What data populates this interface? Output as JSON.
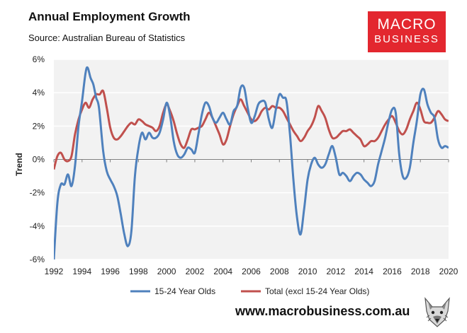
{
  "header": {
    "title": "Annual Employment Growth",
    "subtitle": "Source: Australian Bureau of Statistics"
  },
  "logo": {
    "line1": "MACRO",
    "line2": "BUSINESS"
  },
  "footer": {
    "website": "www.macrobusiness.com.au",
    "icon": "wolf-head-icon"
  },
  "colors": {
    "youth": "#4f81bd",
    "total": "#c0504d",
    "plot_bg": "#f2f2f2",
    "grid": "#ffffff",
    "logo": "#e3272f"
  },
  "chart_data": {
    "type": "line",
    "ylabel": "Trend",
    "xlabel": "",
    "xlim": [
      1992,
      2020
    ],
    "ylim": [
      -6,
      6
    ],
    "xticks": [
      1992,
      1994,
      1996,
      1998,
      2000,
      2002,
      2004,
      2006,
      2008,
      2010,
      2012,
      2014,
      2016,
      2018,
      2020
    ],
    "xtick_labels": [
      "1992",
      "1994",
      "1996",
      "1998",
      "2000",
      "2002",
      "2004",
      "2006",
      "2008",
      "2010",
      "2012",
      "2014",
      "2016",
      "2018",
      "2020"
    ],
    "yticks": [
      -6,
      -4,
      -2,
      0,
      2,
      4,
      6
    ],
    "ytick_labels": [
      "-6%",
      "-4%",
      "-2%",
      "0%",
      "2%",
      "4%",
      "6%"
    ],
    "grid": "horizontal",
    "legend_position": "bottom",
    "series": [
      {
        "name": "15-24 Year Olds",
        "color": "#4f81bd",
        "points": [
          [
            1992.0,
            -6.0
          ],
          [
            1992.25,
            -2.6
          ],
          [
            1992.5,
            -1.5
          ],
          [
            1992.75,
            -1.5
          ],
          [
            1993.0,
            -0.9
          ],
          [
            1993.25,
            -1.6
          ],
          [
            1993.5,
            -0.4
          ],
          [
            1993.75,
            2.0
          ],
          [
            1994.0,
            3.5
          ],
          [
            1994.25,
            5.2
          ],
          [
            1994.4,
            5.5
          ],
          [
            1994.6,
            4.9
          ],
          [
            1994.8,
            4.5
          ],
          [
            1995.0,
            3.7
          ],
          [
            1995.2,
            3.1
          ],
          [
            1995.5,
            0.5
          ],
          [
            1995.75,
            -0.7
          ],
          [
            1996.0,
            -1.2
          ],
          [
            1996.25,
            -1.6
          ],
          [
            1996.5,
            -2.2
          ],
          [
            1996.75,
            -3.3
          ],
          [
            1997.0,
            -4.5
          ],
          [
            1997.25,
            -5.2
          ],
          [
            1997.5,
            -4.3
          ],
          [
            1997.75,
            -1.0
          ],
          [
            1998.0,
            0.7
          ],
          [
            1998.25,
            1.6
          ],
          [
            1998.5,
            1.2
          ],
          [
            1998.75,
            1.6
          ],
          [
            1999.0,
            1.3
          ],
          [
            1999.25,
            1.3
          ],
          [
            1999.5,
            1.6
          ],
          [
            1999.75,
            2.4
          ],
          [
            2000.0,
            3.4
          ],
          [
            2000.25,
            2.6
          ],
          [
            2000.5,
            1.1
          ],
          [
            2000.75,
            0.3
          ],
          [
            2001.0,
            0.1
          ],
          [
            2001.25,
            0.3
          ],
          [
            2001.5,
            0.7
          ],
          [
            2001.75,
            0.6
          ],
          [
            2002.0,
            0.4
          ],
          [
            2002.25,
            1.5
          ],
          [
            2002.5,
            2.7
          ],
          [
            2002.75,
            3.4
          ],
          [
            2003.0,
            3.2
          ],
          [
            2003.25,
            2.5
          ],
          [
            2003.5,
            2.2
          ],
          [
            2003.75,
            2.5
          ],
          [
            2004.0,
            2.8
          ],
          [
            2004.25,
            2.4
          ],
          [
            2004.5,
            2.1
          ],
          [
            2004.75,
            2.9
          ],
          [
            2005.0,
            3.2
          ],
          [
            2005.25,
            4.3
          ],
          [
            2005.5,
            4.3
          ],
          [
            2005.75,
            3.1
          ],
          [
            2006.0,
            2.2
          ],
          [
            2006.25,
            2.6
          ],
          [
            2006.5,
            3.3
          ],
          [
            2006.75,
            3.5
          ],
          [
            2007.0,
            3.4
          ],
          [
            2007.25,
            2.4
          ],
          [
            2007.5,
            1.9
          ],
          [
            2007.75,
            3.0
          ],
          [
            2008.0,
            3.9
          ],
          [
            2008.25,
            3.7
          ],
          [
            2008.5,
            3.5
          ],
          [
            2008.75,
            1.5
          ],
          [
            2009.0,
            -1.3
          ],
          [
            2009.25,
            -3.5
          ],
          [
            2009.5,
            -4.5
          ],
          [
            2009.75,
            -3.0
          ],
          [
            2010.0,
            -1.2
          ],
          [
            2010.25,
            -0.3
          ],
          [
            2010.5,
            0.1
          ],
          [
            2010.75,
            -0.3
          ],
          [
            2011.0,
            -0.5
          ],
          [
            2011.25,
            -0.3
          ],
          [
            2011.5,
            0.3
          ],
          [
            2011.75,
            0.8
          ],
          [
            2012.0,
            0.1
          ],
          [
            2012.25,
            -0.9
          ],
          [
            2012.5,
            -0.8
          ],
          [
            2012.75,
            -1.0
          ],
          [
            2013.0,
            -1.3
          ],
          [
            2013.25,
            -1.0
          ],
          [
            2013.5,
            -0.8
          ],
          [
            2013.75,
            -0.9
          ],
          [
            2014.0,
            -1.2
          ],
          [
            2014.25,
            -1.4
          ],
          [
            2014.5,
            -1.6
          ],
          [
            2014.75,
            -1.3
          ],
          [
            2015.0,
            -0.3
          ],
          [
            2015.25,
            0.5
          ],
          [
            2015.5,
            1.3
          ],
          [
            2015.75,
            2.3
          ],
          [
            2016.0,
            3.0
          ],
          [
            2016.25,
            2.8
          ],
          [
            2016.5,
            0.3
          ],
          [
            2016.75,
            -1.0
          ],
          [
            2017.0,
            -1.1
          ],
          [
            2017.25,
            -0.5
          ],
          [
            2017.5,
            1.0
          ],
          [
            2017.75,
            2.3
          ],
          [
            2018.0,
            3.9
          ],
          [
            2018.25,
            4.2
          ],
          [
            2018.5,
            3.3
          ],
          [
            2018.75,
            2.8
          ],
          [
            2019.0,
            2.5
          ],
          [
            2019.25,
            1.2
          ],
          [
            2019.5,
            0.7
          ],
          [
            2019.75,
            0.8
          ],
          [
            2020.0,
            0.7
          ]
        ]
      },
      {
        "name": "Total (excl 15-24 Year Olds)",
        "color": "#c0504d",
        "points": [
          [
            1992.0,
            -0.6
          ],
          [
            1992.25,
            0.2
          ],
          [
            1992.5,
            0.4
          ],
          [
            1992.75,
            0.0
          ],
          [
            1993.0,
            -0.1
          ],
          [
            1993.25,
            0.2
          ],
          [
            1993.5,
            1.5
          ],
          [
            1993.75,
            2.4
          ],
          [
            1994.0,
            3.0
          ],
          [
            1994.25,
            3.4
          ],
          [
            1994.5,
            3.1
          ],
          [
            1994.75,
            3.6
          ],
          [
            1995.0,
            3.9
          ],
          [
            1995.25,
            3.9
          ],
          [
            1995.5,
            4.1
          ],
          [
            1995.75,
            3.1
          ],
          [
            1996.0,
            1.9
          ],
          [
            1996.25,
            1.3
          ],
          [
            1996.5,
            1.2
          ],
          [
            1996.75,
            1.4
          ],
          [
            1997.0,
            1.7
          ],
          [
            1997.25,
            2.0
          ],
          [
            1997.5,
            2.2
          ],
          [
            1997.75,
            2.1
          ],
          [
            1998.0,
            2.4
          ],
          [
            1998.25,
            2.3
          ],
          [
            1998.5,
            2.1
          ],
          [
            1998.75,
            2.0
          ],
          [
            1999.0,
            1.9
          ],
          [
            1999.25,
            1.7
          ],
          [
            1999.5,
            2.0
          ],
          [
            1999.75,
            2.8
          ],
          [
            2000.0,
            3.3
          ],
          [
            2000.25,
            2.9
          ],
          [
            2000.5,
            2.3
          ],
          [
            2000.75,
            1.5
          ],
          [
            2001.0,
            0.9
          ],
          [
            2001.25,
            0.7
          ],
          [
            2001.5,
            1.2
          ],
          [
            2001.75,
            1.8
          ],
          [
            2002.0,
            1.8
          ],
          [
            2002.25,
            1.9
          ],
          [
            2002.5,
            2.0
          ],
          [
            2002.75,
            2.4
          ],
          [
            2003.0,
            2.8
          ],
          [
            2003.25,
            2.5
          ],
          [
            2003.5,
            2.0
          ],
          [
            2003.75,
            1.5
          ],
          [
            2004.0,
            0.9
          ],
          [
            2004.25,
            1.2
          ],
          [
            2004.5,
            2.0
          ],
          [
            2004.75,
            2.7
          ],
          [
            2005.0,
            3.2
          ],
          [
            2005.25,
            3.6
          ],
          [
            2005.5,
            3.2
          ],
          [
            2005.75,
            2.8
          ],
          [
            2006.0,
            2.4
          ],
          [
            2006.25,
            2.3
          ],
          [
            2006.5,
            2.5
          ],
          [
            2006.75,
            2.9
          ],
          [
            2007.0,
            3.1
          ],
          [
            2007.25,
            3.0
          ],
          [
            2007.5,
            3.2
          ],
          [
            2007.75,
            3.1
          ],
          [
            2008.0,
            3.1
          ],
          [
            2008.25,
            2.9
          ],
          [
            2008.5,
            2.5
          ],
          [
            2008.75,
            2.1
          ],
          [
            2009.0,
            1.7
          ],
          [
            2009.25,
            1.4
          ],
          [
            2009.5,
            1.1
          ],
          [
            2009.75,
            1.3
          ],
          [
            2010.0,
            1.7
          ],
          [
            2010.25,
            2.0
          ],
          [
            2010.5,
            2.5
          ],
          [
            2010.75,
            3.2
          ],
          [
            2011.0,
            2.9
          ],
          [
            2011.25,
            2.5
          ],
          [
            2011.5,
            1.8
          ],
          [
            2011.75,
            1.3
          ],
          [
            2012.0,
            1.3
          ],
          [
            2012.25,
            1.5
          ],
          [
            2012.5,
            1.7
          ],
          [
            2012.75,
            1.7
          ],
          [
            2013.0,
            1.8
          ],
          [
            2013.25,
            1.6
          ],
          [
            2013.5,
            1.4
          ],
          [
            2013.75,
            1.2
          ],
          [
            2014.0,
            0.8
          ],
          [
            2014.25,
            0.9
          ],
          [
            2014.5,
            1.1
          ],
          [
            2014.75,
            1.1
          ],
          [
            2015.0,
            1.3
          ],
          [
            2015.25,
            1.7
          ],
          [
            2015.5,
            2.1
          ],
          [
            2015.75,
            2.4
          ],
          [
            2016.0,
            2.6
          ],
          [
            2016.25,
            2.2
          ],
          [
            2016.5,
            1.7
          ],
          [
            2016.75,
            1.5
          ],
          [
            2017.0,
            1.8
          ],
          [
            2017.25,
            2.4
          ],
          [
            2017.5,
            2.9
          ],
          [
            2017.75,
            3.4
          ],
          [
            2018.0,
            3.0
          ],
          [
            2018.25,
            2.3
          ],
          [
            2018.5,
            2.2
          ],
          [
            2018.75,
            2.2
          ],
          [
            2019.0,
            2.5
          ],
          [
            2019.25,
            2.9
          ],
          [
            2019.5,
            2.7
          ],
          [
            2019.75,
            2.4
          ],
          [
            2020.0,
            2.3
          ]
        ]
      }
    ]
  }
}
